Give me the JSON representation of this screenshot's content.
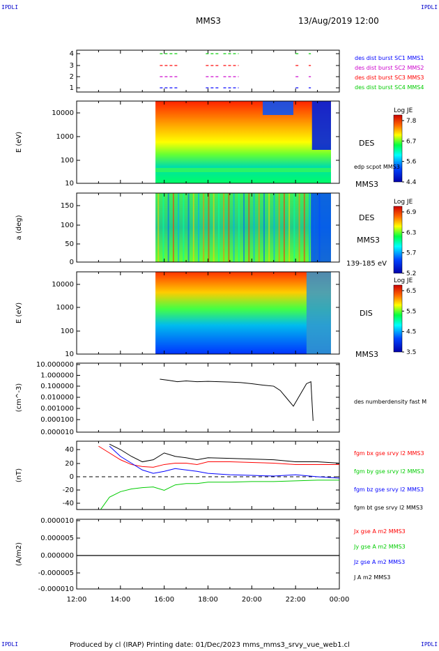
{
  "corners": {
    "top_left": "IPDLI",
    "top_right": "IPDLI",
    "bottom_left": "IPDLI",
    "bottom_right": "IPDLI"
  },
  "header": {
    "title": "MMS3",
    "datetime": "13/Aug/2019 12:00"
  },
  "footer": {
    "text": "Produced by cl (IRAP)   Printing date: 01/Dec/2023   mms_mms3_srvy_vue_web1.cl"
  },
  "colors": {
    "mms1": "#0000ff",
    "mms2": "#cc00cc",
    "mms3": "#ff0000",
    "mms4": "#00cc00",
    "black": "#000000"
  },
  "chart_data": [
    {
      "type": "line",
      "panel": "burst-availability",
      "ytick_labels": [
        "4",
        "3",
        "2",
        "1"
      ],
      "legend": [
        {
          "label": "des dist burst SC1 MMS1",
          "color": "#0000ff"
        },
        {
          "label": "des dist burst SC2 MMS2",
          "color": "#cc00cc"
        },
        {
          "label": "des dist burst SC3 MMS3",
          "color": "#ff0000"
        },
        {
          "label": "des dist burst SC4 MMS4",
          "color": "#00cc00"
        }
      ],
      "segments_hours": [
        [
          15.8,
          16.6
        ],
        [
          17.9,
          18.5
        ],
        [
          18.7,
          19.4
        ],
        [
          22.0,
          22.2
        ],
        [
          22.6,
          22.7
        ]
      ]
    },
    {
      "type": "heatmap",
      "panel": "des-energy",
      "ylabel": "E (eV)",
      "ytick_labels": [
        "10000",
        "1000",
        "100",
        "10"
      ],
      "instrument": "DES",
      "overlay_label": "edp scpot MMS3",
      "bottom_label": "MMS3",
      "colorbar": {
        "title": "Log JE",
        "ticks": [
          "7.8",
          "6.7",
          "5.6",
          "4.4"
        ]
      },
      "data_start_hour": 15.6
    },
    {
      "type": "heatmap",
      "panel": "des-pitch",
      "ylabel": "a (deg)",
      "ytick_labels": [
        "150",
        "100",
        "50",
        "0"
      ],
      "instrument": "DES",
      "side_label": "MMS3",
      "bottom_label": "139-185 eV",
      "colorbar": {
        "title": "Log JE",
        "ticks": [
          "6.9",
          "6.3",
          "5.7",
          "5.2"
        ]
      },
      "data_start_hour": 15.6
    },
    {
      "type": "heatmap",
      "panel": "dis-energy",
      "ylabel": "E (eV)",
      "ytick_labels": [
        "10000",
        "1000",
        "100",
        "10"
      ],
      "instrument": "DIS",
      "bottom_label": "MMS3",
      "colorbar": {
        "title": "Log JE",
        "ticks": [
          "6.5",
          "5.5",
          "4.5",
          "3.5"
        ]
      },
      "data_start_hour": 15.6
    },
    {
      "type": "line",
      "panel": "density",
      "ylabel": "(cm^-3)",
      "ytick_labels": [
        "10.000000",
        "1.000000",
        "0.100000",
        "0.010000",
        "0.001000",
        "0.000100",
        "0.000010",
        "0.000001"
      ],
      "log_scale": true,
      "series": [
        {
          "name": "des numberdensity fast M",
          "color": "#000000",
          "x": [
            15.8,
            16.2,
            16.6,
            17.0,
            17.5,
            18.0,
            18.5,
            19.0,
            19.5,
            20.0,
            20.5,
            21.0,
            21.3,
            21.6,
            21.9,
            22.2,
            22.5,
            22.7,
            22.8
          ],
          "y": [
            0.5,
            0.4,
            0.3,
            0.35,
            0.3,
            0.32,
            0.3,
            0.28,
            0.25,
            0.2,
            0.15,
            0.12,
            0.05,
            0.01,
            0.002,
            0.02,
            0.2,
            0.3,
            0.0001
          ]
        }
      ]
    },
    {
      "type": "line",
      "panel": "magnetic-field",
      "ylabel": "(nT)",
      "ytick_labels": [
        "40",
        "20",
        "0",
        "-20",
        "-40"
      ],
      "ylim": [
        -50,
        50
      ],
      "series": [
        {
          "name": "fgm bx gse srvy l2 MMS3",
          "color": "#ff0000",
          "x": [
            13.0,
            13.5,
            14.0,
            14.5,
            15.0,
            15.5,
            16.0,
            16.5,
            17.0,
            17.5,
            18.0,
            19.0,
            20.0,
            21.0,
            22.0,
            23.0,
            24.0
          ],
          "y": [
            45,
            35,
            25,
            18,
            15,
            14,
            18,
            20,
            20,
            18,
            22,
            22,
            21,
            20,
            18,
            18,
            18
          ]
        },
        {
          "name": "fgm by gse srvy l2 MMS3",
          "color": "#00cc00",
          "x": [
            13.1,
            13.5,
            14.0,
            14.5,
            15.0,
            15.5,
            16.0,
            16.5,
            17.0,
            17.5,
            18.0,
            19.0,
            20.0,
            21.0,
            22.0,
            23.0,
            24.0
          ],
          "y": [
            -48,
            -30,
            -22,
            -18,
            -16,
            -15,
            -20,
            -12,
            -10,
            -10,
            -8,
            -8,
            -7,
            -7,
            -6,
            -5,
            -5
          ]
        },
        {
          "name": "fgm bz gse srvy l2 MMS3",
          "color": "#0000ff",
          "x": [
            13.5,
            14.0,
            14.5,
            15.0,
            15.5,
            16.0,
            16.5,
            17.0,
            17.5,
            18.0,
            19.0,
            20.0,
            21.0,
            22.0,
            23.0,
            24.0
          ],
          "y": [
            45,
            30,
            20,
            10,
            5,
            8,
            12,
            10,
            8,
            5,
            3,
            2,
            1,
            3,
            0,
            -2
          ]
        },
        {
          "name": "fgm bt gse srvy l2 MMS3",
          "color": "#000000",
          "x": [
            13.5,
            14.0,
            14.5,
            15.0,
            15.5,
            16.0,
            16.5,
            17.0,
            17.5,
            18.0,
            19.0,
            20.0,
            21.0,
            22.0,
            23.0,
            24.0
          ],
          "y": [
            48,
            40,
            30,
            22,
            25,
            35,
            30,
            28,
            25,
            28,
            27,
            26,
            25,
            22,
            22,
            20
          ]
        }
      ]
    },
    {
      "type": "line",
      "panel": "current-density",
      "ylabel": "(A/m2)",
      "ytick_labels": [
        "0.000010",
        "0.000005",
        "0.000000",
        "-0.000005",
        "-0.000010"
      ],
      "ylim": [
        -1e-05,
        1e-05
      ],
      "series": [
        {
          "name": "Jx gse A m2 MMS3",
          "color": "#ff0000",
          "y_const": 0
        },
        {
          "name": "Jy gse A m2 MMS3",
          "color": "#00cc00",
          "y_const": 0
        },
        {
          "name": "Jz gse A m2 MMS3",
          "color": "#0000ff",
          "y_const": 0
        },
        {
          "name": "J A m2 MMS3",
          "color": "#000000",
          "y_const": 0
        }
      ],
      "xtick_labels": [
        "12:00",
        "14:00",
        "16:00",
        "18:00",
        "20:00",
        "22:00",
        "00:00"
      ]
    }
  ]
}
